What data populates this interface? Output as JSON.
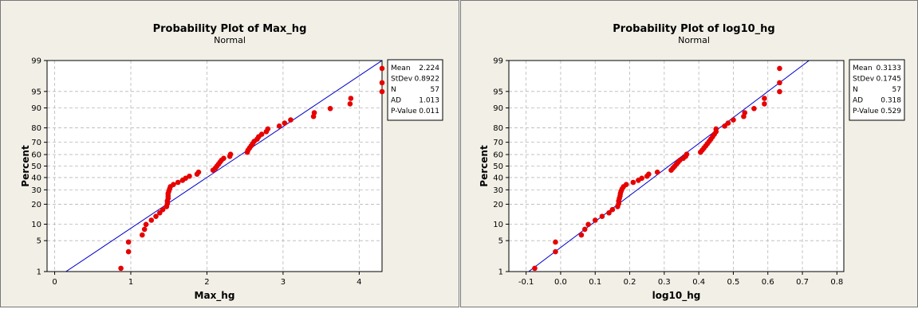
{
  "panels": [
    {
      "title": "Probability Plot of Max_hg",
      "subtitle": "Normal",
      "xlabel": "Max_hg",
      "ylabel": "Percent",
      "stats": [
        {
          "label": "Mean",
          "value": "2.224"
        },
        {
          "label": "StDev",
          "value": "0.8922"
        },
        {
          "label": "N",
          "value": "57"
        },
        {
          "label": "AD",
          "value": "1.013"
        },
        {
          "label": "P-Value",
          "value": "0.011"
        }
      ]
    },
    {
      "title": "Probability Plot of log10_hg",
      "subtitle": "Normal",
      "xlabel": "log10_hg",
      "ylabel": "Percent",
      "stats": [
        {
          "label": "Mean",
          "value": "0.3133"
        },
        {
          "label": "StDev",
          "value": "0.1745"
        },
        {
          "label": "N",
          "value": "57"
        },
        {
          "label": "AD",
          "value": "0.318"
        },
        {
          "label": "P-Value",
          "value": "0.529"
        }
      ]
    }
  ],
  "colors": {
    "points": "#e60000",
    "fit_line": "#0000cc",
    "panel_bg": "#f2efe6",
    "grid": "#b8b8b8"
  },
  "chart_data": [
    {
      "type": "scatter",
      "title": "Probability Plot of Max_hg",
      "subtitle": "Normal",
      "xlabel": "Max_hg",
      "ylabel": "Percent",
      "xlim": [
        -0.1,
        4.3
      ],
      "x_ticks": [
        0,
        1,
        2,
        3,
        4
      ],
      "y_ticks": [
        1,
        5,
        10,
        20,
        30,
        40,
        50,
        60,
        70,
        80,
        90,
        95,
        99
      ],
      "y_scale": "normal-probability",
      "grid": true,
      "fit_line": {
        "mean": 2.224,
        "stdev": 0.8922
      },
      "points": {
        "x": [
          0.87,
          0.97,
          0.97,
          1.15,
          1.18,
          1.2,
          1.27,
          1.33,
          1.38,
          1.42,
          1.47,
          1.48,
          1.48,
          1.49,
          1.49,
          1.49,
          1.5,
          1.51,
          1.52,
          1.56,
          1.62,
          1.68,
          1.72,
          1.77,
          1.87,
          1.89,
          2.08,
          2.11,
          2.13,
          2.15,
          2.17,
          2.19,
          2.22,
          2.3,
          2.31,
          2.53,
          2.54,
          2.56,
          2.58,
          2.6,
          2.62,
          2.66,
          2.68,
          2.72,
          2.78,
          2.8,
          2.95,
          3.02,
          3.1,
          3.4,
          3.41,
          3.62,
          3.88,
          3.89,
          4.3,
          4.3,
          4.3
        ],
        "y": [
          1.21,
          2.95,
          4.69,
          6.43,
          8.16,
          9.9,
          11.63,
          13.37,
          15.11,
          16.84,
          18.58,
          20.31,
          22.05,
          23.78,
          25.52,
          27.26,
          28.99,
          30.73,
          32.46,
          34.2,
          35.94,
          37.67,
          39.41,
          41.14,
          42.88,
          44.62,
          46.35,
          48.09,
          49.82,
          51.56,
          53.29,
          55.03,
          56.77,
          58.5,
          60.24,
          61.97,
          63.71,
          65.45,
          67.18,
          68.92,
          70.65,
          72.39,
          74.13,
          75.86,
          77.6,
          79.33,
          81.07,
          82.8,
          84.54,
          86.28,
          88.01,
          89.75,
          91.48,
          93.22,
          94.96,
          96.69,
          98.43
        ]
      }
    },
    {
      "type": "scatter",
      "title": "Probability Plot of log10_hg",
      "subtitle": "Normal",
      "xlabel": "log10_hg",
      "ylabel": "Percent",
      "xlim": [
        -0.15,
        0.82
      ],
      "x_ticks": [
        -0.1,
        0.0,
        0.1,
        0.2,
        0.3,
        0.4,
        0.5,
        0.6,
        0.7,
        0.8
      ],
      "y_ticks": [
        1,
        5,
        10,
        20,
        30,
        40,
        50,
        60,
        70,
        80,
        90,
        95,
        99
      ],
      "y_scale": "normal-probability",
      "grid": true,
      "fit_line": {
        "mean": 0.3133,
        "stdev": 0.1745
      },
      "points": {
        "x": [
          -0.075,
          -0.015,
          -0.015,
          0.06,
          0.07,
          0.08,
          0.1,
          0.12,
          0.14,
          0.15,
          0.165,
          0.168,
          0.168,
          0.17,
          0.172,
          0.173,
          0.175,
          0.178,
          0.182,
          0.19,
          0.21,
          0.225,
          0.235,
          0.25,
          0.255,
          0.28,
          0.32,
          0.325,
          0.33,
          0.335,
          0.34,
          0.345,
          0.355,
          0.362,
          0.365,
          0.405,
          0.41,
          0.415,
          0.42,
          0.425,
          0.43,
          0.435,
          0.44,
          0.445,
          0.45,
          0.45,
          0.475,
          0.485,
          0.5,
          0.53,
          0.533,
          0.56,
          0.59,
          0.59,
          0.634,
          0.634,
          0.634
        ],
        "y": [
          1.21,
          2.95,
          4.69,
          6.43,
          8.16,
          9.9,
          11.63,
          13.37,
          15.11,
          16.84,
          18.58,
          20.31,
          22.05,
          23.78,
          25.52,
          27.26,
          28.99,
          30.73,
          32.46,
          34.2,
          35.94,
          37.67,
          39.41,
          41.14,
          42.88,
          44.62,
          46.35,
          48.09,
          49.82,
          51.56,
          53.29,
          55.03,
          56.77,
          58.5,
          60.24,
          61.97,
          63.71,
          65.45,
          67.18,
          68.92,
          70.65,
          72.39,
          74.13,
          75.86,
          77.6,
          79.33,
          81.07,
          82.8,
          84.54,
          86.28,
          88.01,
          89.75,
          91.48,
          93.22,
          94.96,
          96.69,
          98.43
        ]
      }
    }
  ]
}
